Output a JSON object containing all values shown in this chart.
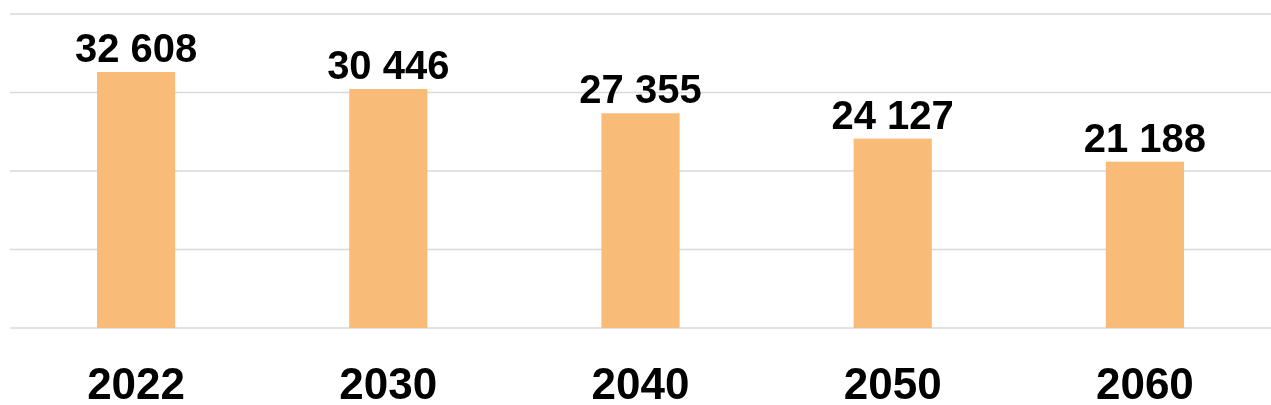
{
  "chart_data": {
    "type": "bar",
    "categories": [
      "2022",
      "2030",
      "2040",
      "2050",
      "2060"
    ],
    "values": [
      32608,
      30446,
      27355,
      24127,
      21188
    ],
    "value_labels": [
      "32 608",
      "30 446",
      "27 355",
      "24 127",
      "21 188"
    ],
    "color": "#f9bc78",
    "ylim": [
      0,
      40000
    ],
    "yticks": [
      {
        "value": 0,
        "label": null
      },
      {
        "value": 10000,
        "label": null
      },
      {
        "value": 20000,
        "label": null
      },
      {
        "value": 30000,
        "label": null
      },
      {
        "value": 40000,
        "label": null
      }
    ],
    "grid": "y",
    "tick_labels": "x"
  }
}
